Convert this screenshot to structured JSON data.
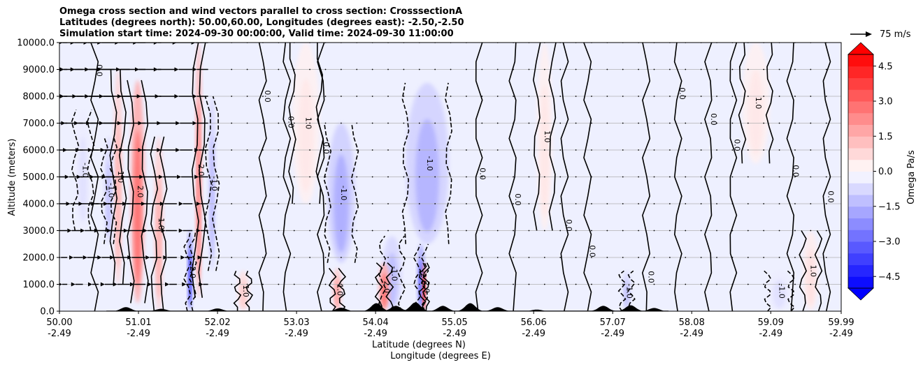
{
  "title_lines": [
    "Omega cross section and wind vectors parallel to cross section: CrosssectionA",
    "Latitudes (degrees north): 50.00,60.00, Longitudes (degrees east): -2.50,-2.50",
    "Simulation start time: 2024-09-30 00:00:00, Valid time: 2024-09-30 11:00:00"
  ],
  "reference_vector_label": "75 m/s",
  "colorbar_label": "Omega Pa/s",
  "contour_labels": [
    "0.0",
    "1.0",
    "-1.0",
    "2.0",
    "-2.0"
  ],
  "chart_data": {
    "type": "heatmap",
    "title": "Omega cross section and wind vectors parallel to cross section: CrosssectionA",
    "ylabel": "Altitude (meters)",
    "xlabel_lines": [
      "Latitude (degrees N)",
      "Longitude (degrees E)"
    ],
    "ylim": [
      0,
      10000
    ],
    "yticks": [
      "0.0",
      "1000.0",
      "2000.0",
      "3000.0",
      "4000.0",
      "5000.0",
      "6000.0",
      "7000.0",
      "8000.0",
      "9000.0",
      "10000.0"
    ],
    "ytick_values": [
      0,
      1000,
      2000,
      3000,
      4000,
      5000,
      6000,
      7000,
      8000,
      9000,
      10000
    ],
    "x_range": [
      50.0,
      59.99
    ],
    "xticks_lat": [
      "50.00",
      "51.01",
      "52.02",
      "53.03",
      "54.04",
      "55.05",
      "56.06",
      "57.07",
      "58.08",
      "59.09",
      "59.99"
    ],
    "xticks_lat_values": [
      50.0,
      51.01,
      52.02,
      53.03,
      54.04,
      55.05,
      56.06,
      57.07,
      58.08,
      59.09,
      59.99
    ],
    "xticks_lon": [
      "-2.49",
      "-2.49",
      "-2.49",
      "-2.49",
      "-2.49",
      "-2.49",
      "-2.49",
      "-2.49",
      "-2.49",
      "-2.49",
      "-2.49"
    ],
    "grid": "horizontal",
    "colormap": "bwr",
    "colorbar_ticks": [
      "−4.5",
      "−3.0",
      "−1.5",
      "0.0",
      "1.5",
      "3.0",
      "4.5"
    ],
    "colorbar_tick_values": [
      -4.5,
      -3.0,
      -1.5,
      0.0,
      1.5,
      3.0,
      4.5
    ],
    "colorbar_range": [
      -5,
      5
    ],
    "colorbar_extend": "both",
    "colors": {
      "strong_negative": "#0000ff",
      "negative": "#b8b8ff",
      "neutral": "#ffffff",
      "positive": "#ffb8b8",
      "strong_positive": "#ff0000",
      "terrain": "#000000",
      "grid": "#b0b0b0"
    },
    "features": [
      {
        "kind": "positive",
        "lat": 51.0,
        "lat_width": 0.18,
        "z_bottom": 300,
        "z_top": 8600,
        "peak": 2.8
      },
      {
        "kind": "positive",
        "lat": 50.75,
        "lat_width": 0.12,
        "z_bottom": 1000,
        "z_top": 9000,
        "peak": 1.5
      },
      {
        "kind": "positive",
        "lat": 51.27,
        "lat_width": 0.12,
        "z_bottom": 0,
        "z_top": 6500,
        "peak": 1.6
      },
      {
        "kind": "positive",
        "lat": 51.78,
        "lat_width": 0.09,
        "z_bottom": 500,
        "z_top": 10000,
        "peak": 2.5
      },
      {
        "kind": "negative",
        "lat": 51.67,
        "lat_width": 0.07,
        "z_bottom": 0,
        "z_top": 3000,
        "peak": -3.8
      },
      {
        "kind": "negative",
        "lat": 50.63,
        "lat_width": 0.12,
        "z_bottom": 2500,
        "z_top": 6500,
        "peak": -1.2
      },
      {
        "kind": "negative",
        "lat": 51.95,
        "lat_width": 0.1,
        "z_bottom": 1500,
        "z_top": 8000,
        "peak": -1.4
      },
      {
        "kind": "negative",
        "lat": 53.6,
        "lat_width": 0.35,
        "z_bottom": 1800,
        "z_top": 7000,
        "peak": -1.6
      },
      {
        "kind": "negative",
        "lat": 54.7,
        "lat_width": 0.55,
        "z_bottom": 2500,
        "z_top": 8500,
        "peak": -1.5
      },
      {
        "kind": "negative",
        "lat": 54.25,
        "lat_width": 0.25,
        "z_bottom": 0,
        "z_top": 2800,
        "peak": -1.3
      },
      {
        "kind": "negative",
        "lat": 54.62,
        "lat_width": 0.1,
        "z_bottom": 0,
        "z_top": 2500,
        "peak": -3.0
      },
      {
        "kind": "positive",
        "lat": 54.66,
        "lat_width": 0.05,
        "z_bottom": 0,
        "z_top": 1800,
        "peak": 4.8
      },
      {
        "kind": "positive",
        "lat": 54.15,
        "lat_width": 0.14,
        "z_bottom": 0,
        "z_top": 1800,
        "peak": 2.8
      },
      {
        "kind": "positive",
        "lat": 53.55,
        "lat_width": 0.12,
        "z_bottom": 0,
        "z_top": 1600,
        "peak": 1.8
      },
      {
        "kind": "positive",
        "lat": 52.35,
        "lat_width": 0.15,
        "z_bottom": 0,
        "z_top": 1500,
        "peak": 1.0
      },
      {
        "kind": "negative",
        "lat": 57.25,
        "lat_width": 0.12,
        "z_bottom": 0,
        "z_top": 1500,
        "peak": -1.2
      },
      {
        "kind": "positive",
        "lat": 56.2,
        "lat_width": 0.2,
        "z_bottom": 3000,
        "z_top": 10000,
        "peak": 0.5
      },
      {
        "kind": "positive",
        "lat": 58.9,
        "lat_width": 0.35,
        "z_bottom": 5500,
        "z_top": 10000,
        "peak": 0.45
      },
      {
        "kind": "positive",
        "lat": 59.6,
        "lat_width": 0.2,
        "z_bottom": 0,
        "z_top": 3000,
        "peak": 0.6
      },
      {
        "kind": "negative",
        "lat": 59.2,
        "lat_width": 0.3,
        "z_bottom": 0,
        "z_top": 1500,
        "peak": -0.6
      },
      {
        "kind": "positive",
        "lat": 53.15,
        "lat_width": 0.35,
        "z_bottom": 4000,
        "z_top": 10000,
        "peak": 0.45
      },
      {
        "kind": "negative",
        "lat": 50.3,
        "lat_width": 0.2,
        "z_bottom": 3000,
        "z_top": 7500,
        "peak": -0.6
      }
    ],
    "terrain_peaks": [
      {
        "lat": 50.85,
        "height": 150
      },
      {
        "lat": 51.3,
        "height": 90
      },
      {
        "lat": 52.02,
        "height": 100
      },
      {
        "lat": 53.6,
        "height": 130
      },
      {
        "lat": 54.05,
        "height": 300
      },
      {
        "lat": 54.3,
        "height": 200
      },
      {
        "lat": 54.55,
        "height": 330
      },
      {
        "lat": 54.9,
        "height": 200
      },
      {
        "lat": 55.25,
        "height": 300
      },
      {
        "lat": 55.6,
        "height": 150
      },
      {
        "lat": 56.1,
        "height": 60
      },
      {
        "lat": 56.95,
        "height": 200
      },
      {
        "lat": 57.3,
        "height": 220
      },
      {
        "lat": 57.6,
        "height": 120
      }
    ],
    "terrain_extent": [
      50.6,
      57.8
    ],
    "wind_rows_altitude": [
      1000,
      2000,
      3000,
      4000,
      5000,
      6000,
      7000,
      8000,
      9000,
      10000
    ],
    "wind_columns_lat": [
      50.1,
      50.3,
      50.5,
      50.7,
      50.9,
      51.1,
      51.3,
      51.5,
      51.7,
      51.9
    ],
    "wind_u_ms": [
      [
        -8,
        -12,
        -10,
        -15,
        -20,
        -18,
        -15,
        -12,
        -10,
        -8
      ],
      [
        -10,
        -15,
        -18,
        -20,
        -25,
        -22,
        -18,
        -15,
        -12,
        -10
      ],
      [
        -12,
        -18,
        -22,
        -25,
        -30,
        -28,
        -22,
        -18,
        -15,
        -12
      ],
      [
        -15,
        -20,
        -25,
        -30,
        -35,
        -30,
        -25,
        -20,
        -15,
        -12
      ],
      [
        -18,
        -22,
        -28,
        -32,
        -38,
        -32,
        -28,
        -22,
        -18,
        -15
      ],
      [
        -20,
        -25,
        -30,
        -35,
        -40,
        -35,
        -30,
        -25,
        -20,
        -15
      ],
      [
        -20,
        -28,
        -32,
        -38,
        -42,
        -38,
        -30,
        -25,
        -20,
        -18
      ],
      [
        -22,
        -30,
        -35,
        -40,
        -42,
        -38,
        -32,
        -28,
        -22,
        -18
      ],
      [
        -22,
        -30,
        -38,
        -40,
        -45,
        -40,
        -35,
        -30,
        -22,
        -18
      ],
      [
        -25,
        -32,
        -38,
        -42,
        -45,
        -42,
        -38,
        -30,
        -25,
        -20
      ]
    ],
    "reference_vector_ms": 75
  }
}
